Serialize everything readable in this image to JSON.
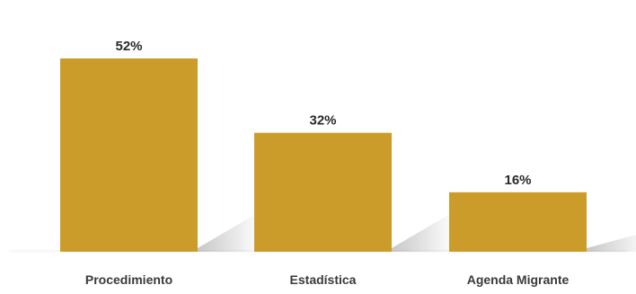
{
  "chart_data": {
    "type": "bar",
    "categories": [
      "Procedimiento",
      "Estadística",
      "Agenda Migrante"
    ],
    "values": [
      52,
      32,
      16
    ],
    "value_labels": [
      "52%",
      "32%",
      "16%"
    ],
    "title": "",
    "xlabel": "",
    "ylabel": "",
    "ylim": [
      0,
      52
    ],
    "grid": false,
    "legend": "none"
  },
  "colors": {
    "bar": "#CC9C2A",
    "background": "#FFFFFF"
  }
}
